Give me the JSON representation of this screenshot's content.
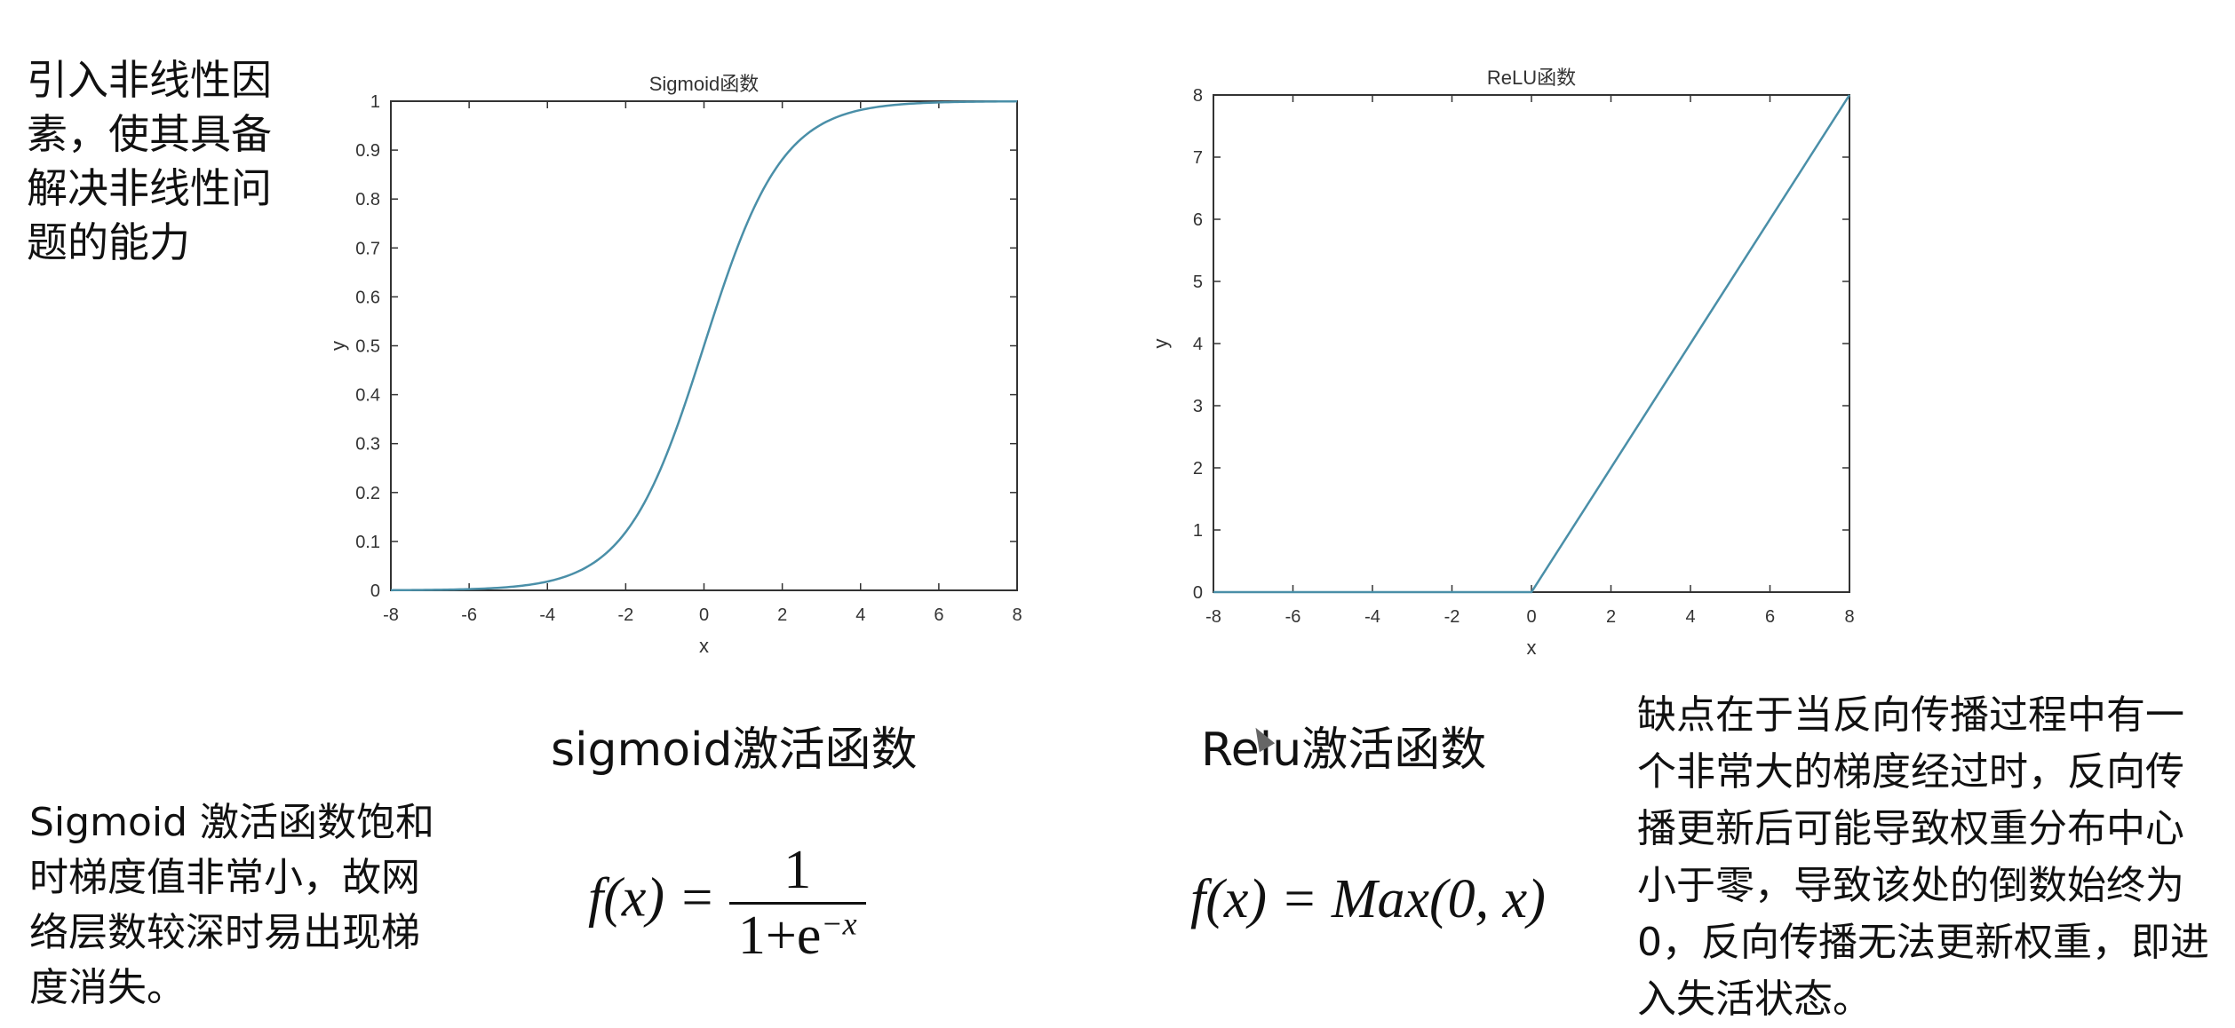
{
  "notes": {
    "top_left": "引入非线性因素，使其具备解决非线性问题的能力",
    "bottom_left": "Sigmoid 激活函数饱和时梯度值非常小，故网络层数较深时易出现梯度消失。",
    "bottom_right": "缺点在于当反向传播过程中有一个非常大的梯度经过时，反向传播更新后可能导致权重分布中心小于零，导致该处的倒数始终为 0，反向传播无法更新权重，即进入失活状态。"
  },
  "captions": {
    "sigmoid": "sigmoid激活函数",
    "relu": "Relu激活函数"
  },
  "formulas": {
    "sigmoid_lhs": "f(x) =",
    "sigmoid_num": "1",
    "sigmoid_den_base": "1+e",
    "sigmoid_den_exp": "−x",
    "relu": "f(x) = Max(0, x)"
  },
  "icons": [
    "mouse-cursor-icon"
  ],
  "colors": {
    "line": "#4a8fa8",
    "axis": "#333333"
  },
  "chart_data": [
    {
      "type": "line",
      "title": "Sigmoid函数",
      "xlabel": "x",
      "ylabel": "y",
      "xlim": [
        -8,
        8
      ],
      "ylim": [
        0,
        1
      ],
      "xticks": [
        -8,
        -6,
        -4,
        -2,
        0,
        2,
        4,
        6,
        8
      ],
      "yticks": [
        0,
        0.1,
        0.2,
        0.3,
        0.4,
        0.5,
        0.6,
        0.7,
        0.8,
        0.9,
        1
      ],
      "grid": false,
      "series": [
        {
          "x": [
            -8,
            -7,
            -6,
            -5,
            -4,
            -3,
            -2,
            -1,
            0,
            1,
            2,
            3,
            4,
            5,
            6,
            7,
            8
          ],
          "y": [
            0.0003,
            0.0009,
            0.0025,
            0.0067,
            0.018,
            0.047,
            0.119,
            0.269,
            0.5,
            0.731,
            0.881,
            0.953,
            0.982,
            0.993,
            0.998,
            0.999,
            1.0
          ]
        }
      ]
    },
    {
      "type": "line",
      "title": "ReLU函数",
      "xlabel": "x",
      "ylabel": "y",
      "xlim": [
        -8,
        8
      ],
      "ylim": [
        0,
        8
      ],
      "xticks": [
        -8,
        -6,
        -4,
        -2,
        0,
        2,
        4,
        6,
        8
      ],
      "yticks": [
        0,
        1,
        2,
        3,
        4,
        5,
        6,
        7,
        8
      ],
      "grid": false,
      "series": [
        {
          "x": [
            -8,
            0,
            8
          ],
          "y": [
            0,
            0,
            8
          ]
        }
      ]
    }
  ]
}
